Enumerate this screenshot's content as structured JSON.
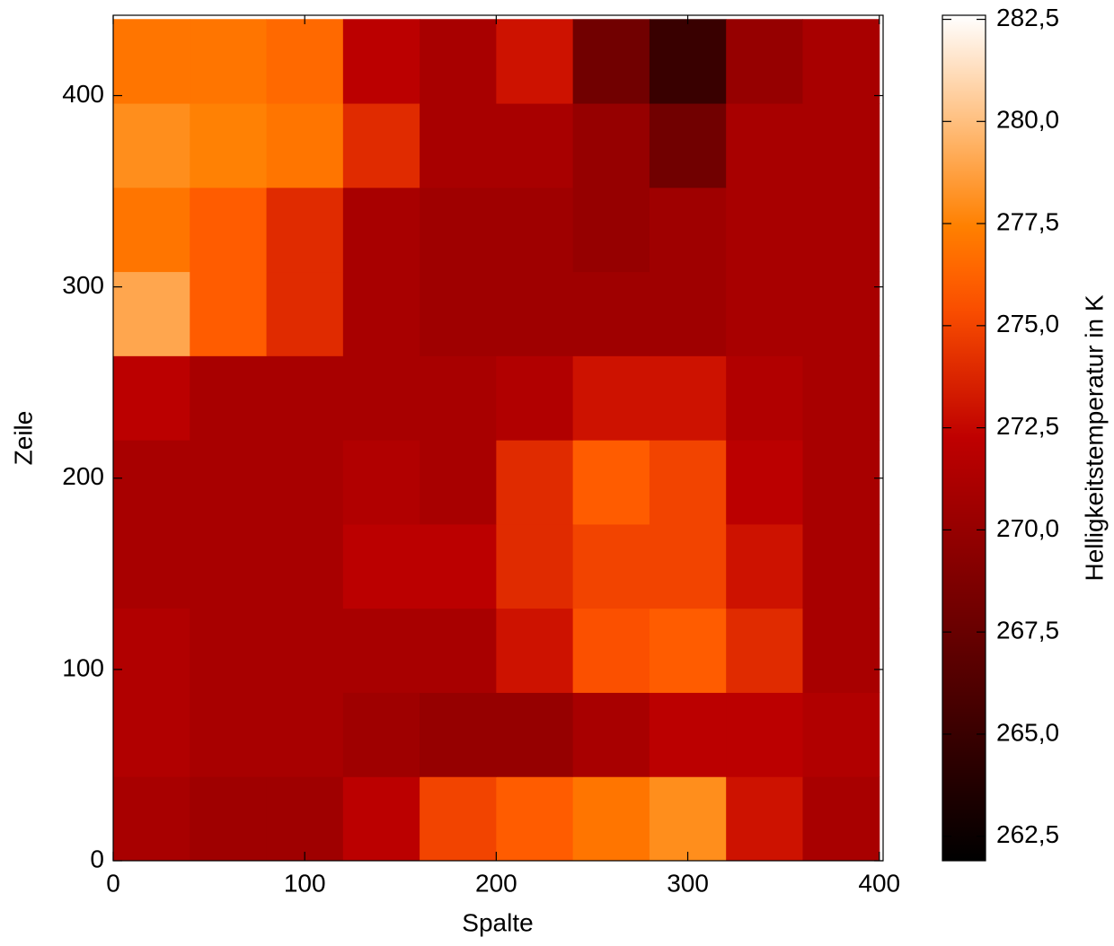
{
  "chart_data": {
    "type": "heatmap",
    "xlabel": "Spalte",
    "ylabel": "Zeile",
    "colorbar_label": "Helligkeitstemperatur in K",
    "colormap": "gist_heat",
    "x": [
      20,
      60,
      100,
      140,
      180,
      220,
      260,
      300,
      340,
      380
    ],
    "y": [
      22,
      66,
      110,
      154,
      198,
      242,
      286,
      330,
      374,
      418
    ],
    "z": [
      [
        271,
        270.5,
        270.5,
        272,
        275,
        276,
        277,
        278,
        273,
        271
      ],
      [
        271.5,
        271,
        271,
        270.5,
        270,
        270,
        271,
        272,
        272,
        271.5
      ],
      [
        271.5,
        271,
        271,
        271,
        271,
        273,
        275.5,
        276,
        274,
        271
      ],
      [
        271,
        271,
        271,
        272,
        272,
        274,
        275,
        275,
        273,
        271
      ],
      [
        271,
        271,
        271,
        271.5,
        271,
        274,
        276,
        275,
        272,
        271
      ],
      [
        272,
        271,
        271,
        271,
        271,
        271.5,
        273,
        273,
        271.5,
        271
      ],
      [
        279,
        276,
        274,
        271,
        270.5,
        270.5,
        270.5,
        270.5,
        271,
        271
      ],
      [
        277,
        276,
        274,
        271,
        270.5,
        270.5,
        270,
        270.5,
        271,
        271
      ],
      [
        278,
        277.5,
        277,
        274,
        271,
        271,
        270,
        268,
        271,
        271
      ],
      [
        277,
        277,
        276.5,
        272,
        271,
        273,
        268,
        265,
        270,
        271
      ]
    ],
    "xlim": [
      0,
      402
    ],
    "ylim": [
      0,
      442
    ],
    "xticks": [
      0,
      100,
      200,
      300,
      400
    ],
    "yticks": [
      0,
      100,
      200,
      300,
      400
    ],
    "clim": [
      261.9,
      282.6
    ],
    "cticks": [
      {
        "value": 262.5,
        "label": "262,5"
      },
      {
        "value": 265,
        "label": "265,0"
      },
      {
        "value": 267.5,
        "label": "267,5"
      },
      {
        "value": 270,
        "label": "270,0"
      },
      {
        "value": 272.5,
        "label": "272,5"
      },
      {
        "value": 275,
        "label": "275,0"
      },
      {
        "value": 277.5,
        "label": "277,5"
      },
      {
        "value": 280,
        "label": "280,0"
      },
      {
        "value": 282.5,
        "label": "282,5"
      }
    ]
  }
}
